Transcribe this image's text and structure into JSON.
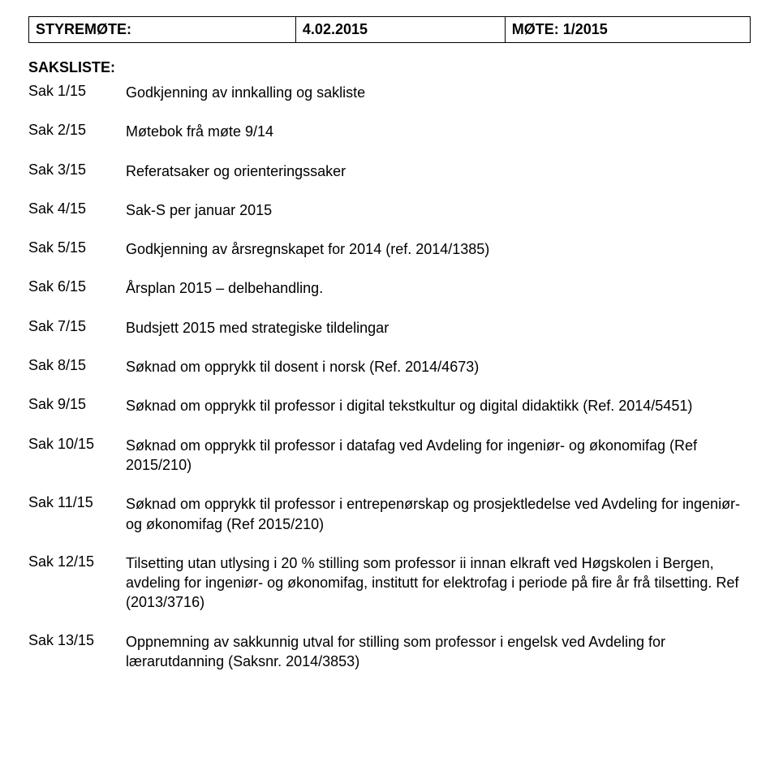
{
  "header": {
    "col1_label": "STYREMØTE:",
    "col2_value": "4.02.2015",
    "col3_value": "MØTE: 1/2015"
  },
  "agenda_title": "SAKSLISTE:",
  "items": [
    {
      "label": "Sak 1/15",
      "desc": "Godkjenning av innkalling og sakliste"
    },
    {
      "label": "Sak 2/15",
      "desc": "Møtebok frå møte 9/14"
    },
    {
      "label": "Sak 3/15",
      "desc": "Referatsaker og orienteringssaker"
    },
    {
      "label": "Sak 4/15",
      "desc": "Sak-S per januar 2015"
    },
    {
      "label": "Sak 5/15",
      "desc": "Godkjenning av årsregnskapet for 2014 (ref. 2014/1385)"
    },
    {
      "label": "Sak 6/15",
      "desc": "Årsplan  2015 – delbehandling."
    },
    {
      "label": "Sak 7/15",
      "desc": "Budsjett 2015 med strategiske tildelingar"
    },
    {
      "label": "Sak 8/15",
      "desc": "Søknad om opprykk til dosent i norsk (Ref. 2014/4673)"
    },
    {
      "label": "Sak 9/15",
      "desc": "Søknad om opprykk til professor i digital tekstkultur og digital didaktikk (Ref. 2014/5451)"
    },
    {
      "label": "Sak 10/15",
      "desc": "Søknad om opprykk til professor i datafag ved Avdeling for ingeniør- og økonomifag (Ref 2015/210)"
    },
    {
      "label": "Sak 11/15",
      "desc": "Søknad om opprykk til professor i entrepenørskap og prosjektledelse ved Avdeling for ingeniør- og økonomifag  (Ref 2015/210)"
    },
    {
      "label": "Sak 12/15",
      "desc": "Tilsetting utan utlysing i 20 % stilling som professor ii innan elkraft ved Høgskolen i Bergen, avdeling for ingeniør- og økonomifag, institutt for elektrofag i periode på fire år frå tilsetting. Ref (2013/3716)"
    },
    {
      "label": "Sak 13/15",
      "desc": "Oppnemning av sakkunnig utval for stilling som professor i engelsk ved Avdeling for lærarutdanning (Saksnr. 2014/3853)"
    }
  ],
  "colors": {
    "text": "#000000",
    "background": "#ffffff",
    "border": "#000000"
  },
  "typography": {
    "font_family": "Arial, Helvetica, sans-serif",
    "font_size_pt": 14,
    "line_height": 1.35
  }
}
